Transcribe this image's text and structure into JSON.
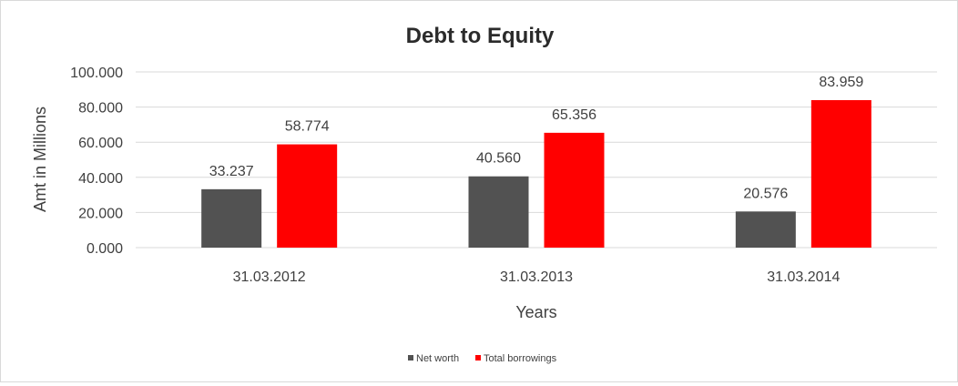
{
  "chart_data": {
    "type": "bar",
    "title": "Debt to Equity",
    "xlabel": "Years",
    "ylabel": "Amt in Millions",
    "categories": [
      "31.03.2012",
      "31.03.2013",
      "31.03.2014"
    ],
    "series": [
      {
        "name": "Net worth",
        "values": [
          33.237,
          40.56,
          20.576
        ],
        "color": "#525252"
      },
      {
        "name": "Total borrowings",
        "values": [
          58.774,
          65.356,
          83.959
        ],
        "color": "#ff0000"
      }
    ],
    "value_labels": [
      [
        "33.237",
        "40.560",
        "20.576"
      ],
      [
        "58.774",
        "65.356",
        "83.959"
      ]
    ],
    "ylim": [
      0,
      100
    ],
    "yticks": [
      0,
      20,
      40,
      60,
      80,
      100
    ],
    "ytick_labels": [
      "0.000",
      "20.000",
      "40.000",
      "60.000",
      "80.000",
      "100.000"
    ],
    "grid": true,
    "legend_position": "bottom"
  }
}
